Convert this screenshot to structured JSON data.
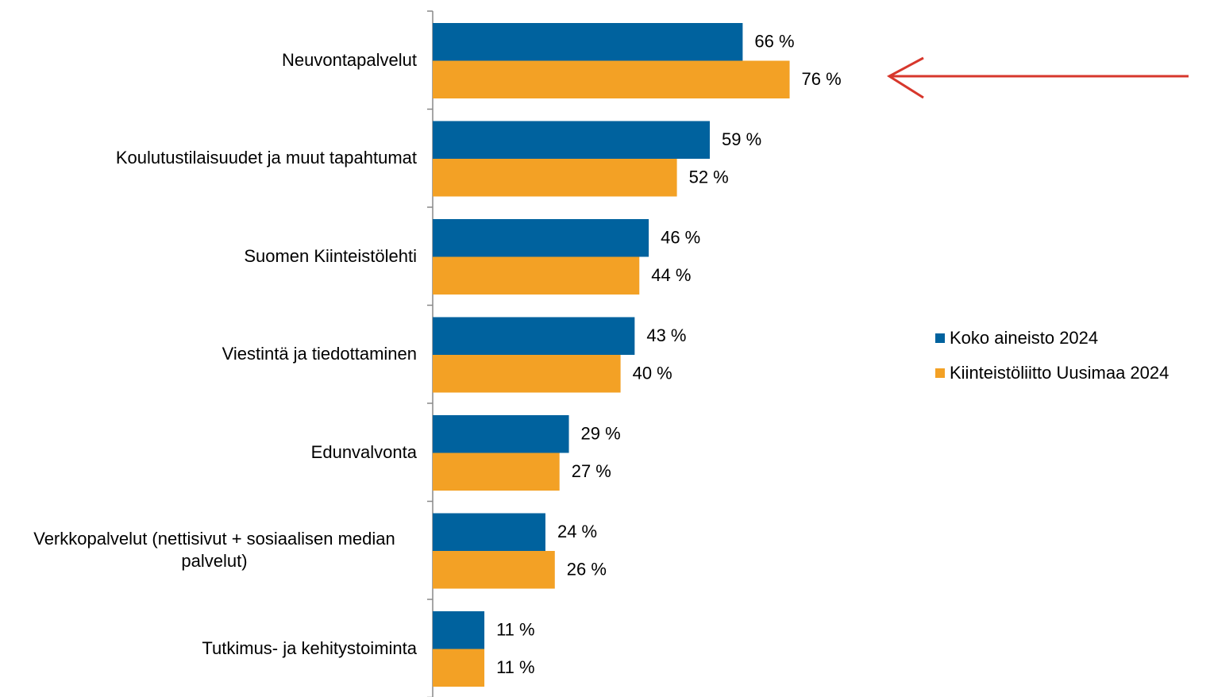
{
  "chart_data": {
    "type": "bar",
    "orientation": "horizontal",
    "categories": [
      "Neuvontapalvelut",
      "Koulutustilaisuudet ja muut tapahtumat",
      "Suomen Kiinteistölehti",
      "Viestintä ja tiedottaminen",
      "Edunvalvonta",
      "Verkkopalvelut (nettisivut + sosiaalisen median palvelut)",
      "Tutkimus- ja kehitystoiminta"
    ],
    "series": [
      {
        "name": "Koko aineisto 2024",
        "color": "#00629e",
        "values": [
          66,
          59,
          46,
          43,
          29,
          24,
          11
        ],
        "value_labels": [
          "66 %",
          "59 %",
          "46 %",
          "43 %",
          "29 %",
          "24 %",
          "11 %"
        ]
      },
      {
        "name": "Kiinteistöliitto Uusimaa 2024",
        "color": "#f3a125",
        "values": [
          76,
          52,
          44,
          40,
          27,
          26,
          11
        ],
        "value_labels": [
          "76 %",
          "52 %",
          "44 %",
          "40 %",
          "27 %",
          "26 %",
          "11 %"
        ]
      }
    ],
    "legend": "right"
  }
}
